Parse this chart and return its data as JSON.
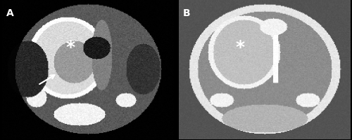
{
  "fig_width": 5.0,
  "fig_height": 2.01,
  "dpi": 100,
  "background_color": "#000000",
  "panel_A_label": "A",
  "panel_B_label": "B",
  "label_color": "#ffffff",
  "label_fontsize": 10,
  "label_fontweight": "bold",
  "asterisk_color": "#ffffff",
  "asterisk_fontsize": 18,
  "arrow_color": "#ffffff"
}
